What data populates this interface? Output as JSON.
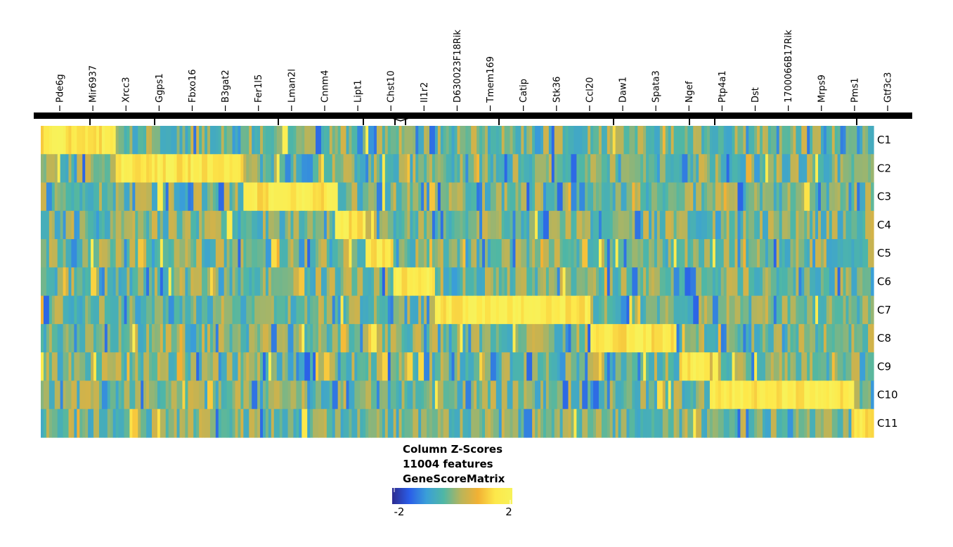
{
  "chart_data": {
    "type": "heatmap",
    "title": "",
    "xlabel": "",
    "ylabel": "",
    "x_labels": [
      "Pde6g",
      "Mir6937",
      "Xrcc3",
      "Ggps1",
      "Fbxo16",
      "B3gat2",
      "Fer1l5",
      "Lman2l",
      "Cnnm4",
      "Lipt1",
      "Chst10",
      "Il1r2",
      "D630023F18Rik",
      "Tmem169",
      "Catip",
      "Stk36",
      "Ccl20",
      "Daw1",
      "Spata3",
      "Ngef",
      "Ptp4a1",
      "Dst",
      "1700066B17Rik",
      "Mrps9",
      "Pms1",
      "Gtf3c3"
    ],
    "y_labels": [
      "C1",
      "C2",
      "C3",
      "C4",
      "C5",
      "C6",
      "C7",
      "C8",
      "C9",
      "C10",
      "C11"
    ],
    "column_blocks": [
      {
        "cluster": "C1",
        "start": 0.0,
        "end": 0.09
      },
      {
        "cluster": "C2",
        "start": 0.09,
        "end": 0.245
      },
      {
        "cluster": "C3",
        "start": 0.245,
        "end": 0.355
      },
      {
        "cluster": "C4",
        "start": 0.355,
        "end": 0.39
      },
      {
        "cluster": "C5",
        "start": 0.39,
        "end": 0.425
      },
      {
        "cluster": "C6",
        "start": 0.425,
        "end": 0.472
      },
      {
        "cluster": "C7",
        "start": 0.472,
        "end": 0.66
      },
      {
        "cluster": "C8",
        "start": 0.66,
        "end": 0.765
      },
      {
        "cluster": "C9",
        "start": 0.765,
        "end": 0.8
      },
      {
        "cluster": "C10",
        "start": 0.8,
        "end": 0.975
      },
      {
        "cluster": "C11",
        "start": 0.975,
        "end": 1.0
      }
    ],
    "colorscale": [
      "#2d2b8f",
      "#2a5de8",
      "#3a9fd8",
      "#4fb7a5",
      "#b9b45a",
      "#f2b134",
      "#fde84a",
      "#f7f25a"
    ],
    "zlim": [
      -2,
      2
    ],
    "colorbar": {
      "title_lines": [
        "Column Z-Scores",
        "11004 features",
        "GeneScoreMatrix"
      ],
      "tick_labels": [
        "-2",
        "2"
      ]
    }
  }
}
